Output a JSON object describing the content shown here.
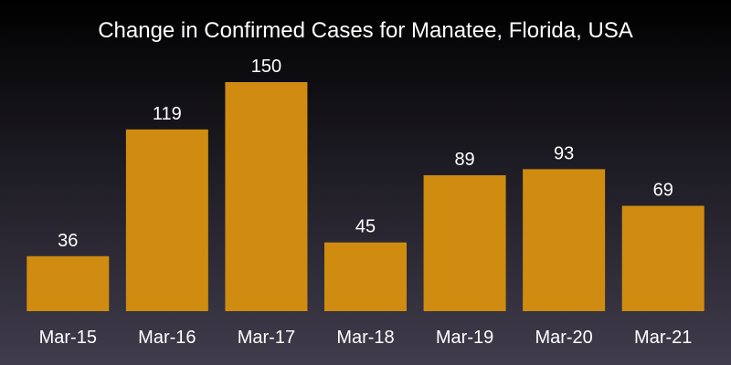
{
  "chart_data": {
    "type": "bar",
    "title": "Change in Confirmed Cases for Manatee, Florida, USA",
    "xlabel": "",
    "ylabel": "",
    "categories": [
      "Mar-15",
      "Mar-16",
      "Mar-17",
      "Mar-18",
      "Mar-19",
      "Mar-20",
      "Mar-21"
    ],
    "values": [
      36,
      119,
      150,
      45,
      89,
      93,
      69
    ],
    "data_labels": [
      "36",
      "119",
      "150",
      "45",
      "89",
      "93",
      "69"
    ],
    "ylim": [
      0,
      150
    ],
    "bar_color": "#d08c10",
    "grid": false,
    "legend": "none"
  }
}
